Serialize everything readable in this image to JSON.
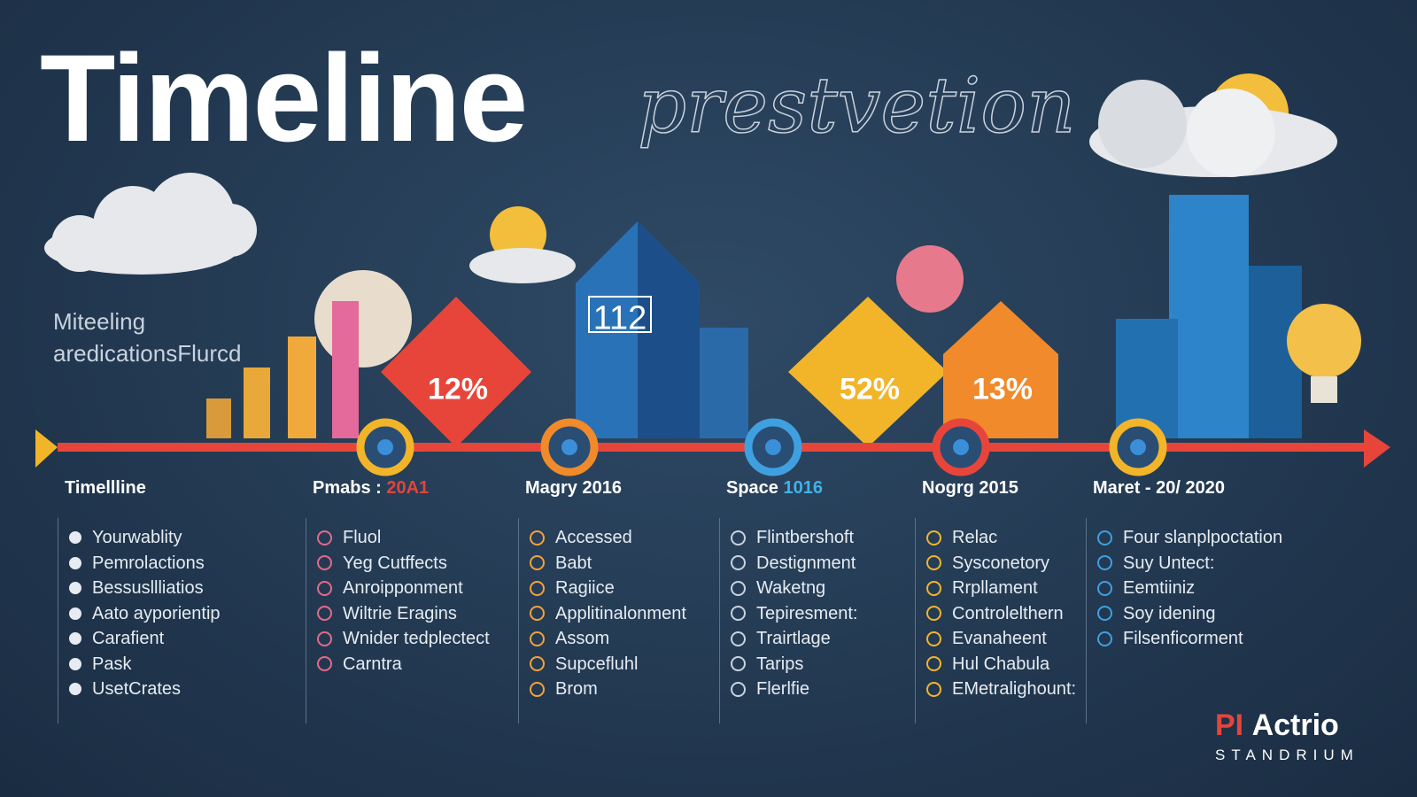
{
  "header": {
    "title": "Timeline",
    "script_title": "prestvetion",
    "side_text": [
      "Miteeling",
      "aredicationsFlurcd"
    ]
  },
  "badges": [
    {
      "label": "12%"
    },
    {
      "label": "112"
    },
    {
      "label": "52%"
    },
    {
      "label": "13%"
    }
  ],
  "columns": [
    {
      "title": "Timellline",
      "items": [
        "Yourwablity",
        "Pemrolactions",
        "Bessusllliatios",
        "Aato ayporientip",
        "Carafient",
        "Pask",
        "UsetCrates"
      ]
    },
    {
      "title": "Pmabs : ",
      "accent": "20A1",
      "items": [
        "Fluol",
        "Yeg Cutffects",
        "Anroipponment",
        "Wiltrie Eragins",
        "Wnider tedplectect",
        "Carntra"
      ]
    },
    {
      "title": "Magry 2016",
      "items": [
        "Accessed",
        "Babt",
        "Ragiice",
        "Applitinalonment",
        "Assom",
        "Supcefluhl",
        "Brom"
      ]
    },
    {
      "title": "Space ",
      "accent": "1016",
      "items": [
        "Flintbershoft",
        "Destignment",
        "Waketng",
        "Tepiresment:",
        "Trairtlage",
        "Tarips",
        "Flerlfie"
      ]
    },
    {
      "title": "Nogrg 2015",
      "items": [
        "Relac",
        "Sysconetory",
        "Rrpllament",
        "Controlelthern",
        "Evanaheent",
        "Hul Chabula",
        "EMetralighount:"
      ]
    },
    {
      "title": "Maret - 20/ 2020",
      "items": [
        "Four slanplpoctation",
        "Suy Untect:",
        "Eemtiiniz",
        "Soy idening",
        "Filsenficorment"
      ]
    }
  ],
  "logo": {
    "brand_red": "PI",
    "brand": "Actrio",
    "tagline": "STANDRIUM"
  }
}
